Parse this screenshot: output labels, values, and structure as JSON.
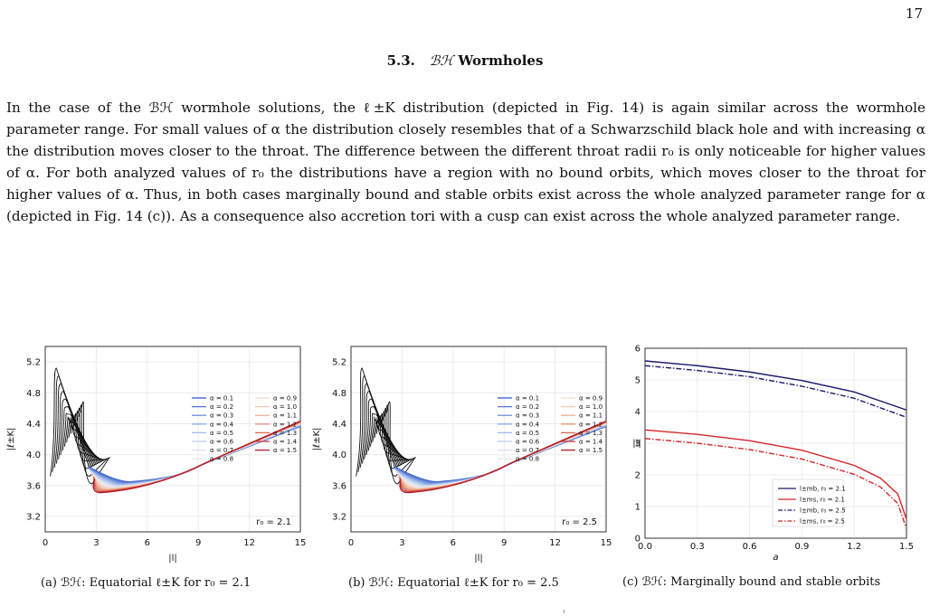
{
  "page": {
    "page_number": "17",
    "section_number": "5.3.",
    "section_title_math": "ℬℋ",
    "section_title_rest": "Wormholes",
    "paragraph": "In the case of the ℬℋ wormhole solutions, the ℓ±K distribution (depicted in Fig. 14) is again similar across the wormhole parameter range. For small values of α the distribution closely resembles that of a Schwarzschild black hole and with increasing α the distribution moves closer to the throat. The difference between the different throat radii r₀ is only noticeable for higher values of α. For both analyzed values of r₀ the distributions have a region with no bound orbits, which moves closer to the throat for higher values of α. Thus, in both cases marginally bound and stable orbits exist across the whole analyzed parameter range for α (depicted in Fig. 14 (c)). As a consequence also accretion tori with a cusp can exist across the whole analyzed parameter range."
  },
  "captions": [
    {
      "label": "(a)",
      "text": "ℬℋ: Equatorial ℓ±K for r₀ = 2.1"
    },
    {
      "label": "(b)",
      "text": "ℬℋ: Equatorial ℓ±K for r₀ = 2.5"
    },
    {
      "label": "(c)",
      "text": "ℬℋ: Marginally bound and stable orbits"
    }
  ],
  "chart_data": [
    {
      "type": "line",
      "xlabel": "|l|",
      "ylabel": "|ℓ±K|",
      "x_ticks": [
        "0",
        "3",
        "6",
        "9",
        "12",
        "15"
      ],
      "y_ticks": [
        "3.2",
        "3.6",
        "4.0",
        "4.4",
        "4.8",
        "5.2"
      ],
      "xlim": [
        0,
        15
      ],
      "ylim": [
        3.0,
        5.4
      ],
      "annotation": "r₀ = 2.1",
      "legend_position": "upper-right",
      "legend": [
        "α = 0.1",
        "α = 0.2",
        "α = 0.3",
        "α = 0.4",
        "α = 0.5",
        "α = 0.6",
        "α = 0.7",
        "α = 0.8",
        "α = 0.9",
        "α = 1.0",
        "α = 1.1",
        "α = 1.2",
        "α = 1.3",
        "α = 1.4",
        "α = 1.5"
      ],
      "series_colors": [
        "#3a5fcd",
        "#5578d6",
        "#7092df",
        "#8aa8e6",
        "#a6bdeb",
        "#c0d0ef",
        "#d8e0f0",
        "#e8e8ee",
        "#f0dcd3",
        "#f0c8b6",
        "#eeb096",
        "#e69072",
        "#da6b50",
        "#c94037",
        "#b2182b"
      ],
      "series_params": [
        0.1,
        0.2,
        0.3,
        0.4,
        0.5,
        0.6,
        0.7,
        0.8,
        0.9,
        1.0,
        1.1,
        1.2,
        1.3,
        1.4,
        1.5
      ],
      "grid": true
    },
    {
      "type": "line",
      "xlabel": "|l|",
      "ylabel": "|ℓ±K|",
      "x_ticks": [
        "0",
        "3",
        "6",
        "9",
        "12",
        "15"
      ],
      "y_ticks": [
        "3.2",
        "3.6",
        "4.0",
        "4.4",
        "4.8",
        "5.2"
      ],
      "xlim": [
        0,
        15
      ],
      "ylim": [
        3.0,
        5.4
      ],
      "annotation": "r₀ = 2.5",
      "legend_position": "upper-right",
      "legend": [
        "α = 0.1",
        "α = 0.2",
        "α = 0.3",
        "α = 0.4",
        "α = 0.5",
        "α = 0.6",
        "α = 0.7",
        "α = 0.8",
        "α = 0.9",
        "α = 1.0",
        "α = 1.1",
        "α = 1.2",
        "α = 1.3",
        "α = 1.4",
        "α = 1.5"
      ],
      "series_colors": [
        "#3a5fcd",
        "#5578d6",
        "#7092df",
        "#8aa8e6",
        "#a6bdeb",
        "#c0d0ef",
        "#d8e0f0",
        "#e8e8ee",
        "#f0dcd3",
        "#f0c8b6",
        "#eeb096",
        "#e69072",
        "#da6b50",
        "#c94037",
        "#b2182b"
      ],
      "series_params": [
        0.1,
        0.2,
        0.3,
        0.4,
        0.5,
        0.6,
        0.7,
        0.8,
        0.9,
        1.0,
        1.1,
        1.2,
        1.3,
        1.4,
        1.5
      ],
      "grid": true
    },
    {
      "type": "line",
      "xlabel": "a",
      "ylabel": "|l|",
      "x_ticks": [
        "0.0",
        "0.3",
        "0.6",
        "0.9",
        "1.2",
        "1.5"
      ],
      "y_ticks": [
        "0",
        "1",
        "2",
        "3",
        "4",
        "5",
        "6"
      ],
      "xlim": [
        0,
        1.5
      ],
      "ylim": [
        0,
        6
      ],
      "legend_position": "lower-right",
      "series": [
        {
          "name": "l±mb, r₀ = 2.1",
          "color": "#1a1a6e",
          "dash": "solid",
          "x": [
            0,
            0.3,
            0.6,
            0.9,
            1.2,
            1.5
          ],
          "y": [
            5.6,
            5.45,
            5.25,
            4.98,
            4.62,
            4.05
          ]
        },
        {
          "name": "l±ms, r₀ = 2.1",
          "color": "#d62728",
          "dash": "solid",
          "x": [
            0,
            0.3,
            0.6,
            0.9,
            1.2,
            1.35,
            1.45,
            1.5
          ],
          "y": [
            3.42,
            3.28,
            3.08,
            2.78,
            2.3,
            1.9,
            1.4,
            0.6
          ]
        },
        {
          "name": "l±mb, r₀ = 2.5",
          "color": "#1a1a6e",
          "dash": "dashdot",
          "x": [
            0,
            0.3,
            0.6,
            0.9,
            1.2,
            1.5
          ],
          "y": [
            5.45,
            5.3,
            5.1,
            4.8,
            4.42,
            3.82
          ]
        },
        {
          "name": "l±ms, r₀ = 2.5",
          "color": "#d62728",
          "dash": "dashdot",
          "x": [
            0,
            0.3,
            0.6,
            0.9,
            1.2,
            1.35,
            1.45,
            1.5
          ],
          "y": [
            3.15,
            3.0,
            2.8,
            2.5,
            2.02,
            1.62,
            1.1,
            0.3
          ]
        }
      ],
      "grid": true
    }
  ]
}
